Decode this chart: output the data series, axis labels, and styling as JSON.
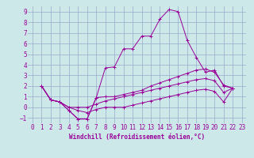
{
  "xlabel": "Windchill (Refroidissement éolien,°C)",
  "background_color": "#cce8e8",
  "grid_color": "#99aacc",
  "line_color": "#990099",
  "xlim": [
    -0.5,
    23.5
  ],
  "ylim": [
    -1.5,
    9.5
  ],
  "xticks": [
    0,
    1,
    2,
    3,
    4,
    5,
    6,
    7,
    8,
    9,
    10,
    11,
    12,
    13,
    14,
    15,
    16,
    17,
    18,
    19,
    20,
    21,
    22,
    23
  ],
  "yticks": [
    -1,
    0,
    1,
    2,
    3,
    4,
    5,
    6,
    7,
    8,
    9
  ],
  "series": [
    {
      "x": [
        1,
        2,
        3,
        4,
        5,
        6,
        7,
        8,
        9,
        10,
        11,
        12,
        13,
        14,
        15,
        16,
        17,
        18,
        19,
        20,
        21,
        22
      ],
      "y": [
        2.0,
        0.7,
        0.5,
        -0.3,
        -1.1,
        -1.1,
        0.9,
        3.7,
        3.8,
        5.5,
        5.5,
        6.7,
        6.7,
        8.3,
        9.2,
        9.0,
        6.3,
        4.7,
        3.3,
        3.5,
        2.0,
        1.8
      ]
    },
    {
      "x": [
        1,
        2,
        3,
        4,
        5,
        6,
        7,
        8,
        9,
        10,
        11,
        12,
        13,
        14,
        15,
        16,
        17,
        18,
        19,
        20,
        21,
        22
      ],
      "y": [
        2.0,
        0.7,
        0.5,
        -0.3,
        -1.1,
        -1.1,
        0.9,
        1.0,
        1.0,
        1.2,
        1.4,
        1.6,
        2.0,
        2.3,
        2.6,
        2.9,
        3.2,
        3.5,
        3.6,
        3.3,
        2.1,
        1.8
      ]
    },
    {
      "x": [
        1,
        2,
        3,
        4,
        5,
        6,
        7,
        8,
        9,
        10,
        11,
        12,
        13,
        14,
        15,
        16,
        17,
        18,
        19,
        20,
        21,
        22
      ],
      "y": [
        2.0,
        0.7,
        0.5,
        0.0,
        0.0,
        0.0,
        0.3,
        0.6,
        0.8,
        1.0,
        1.2,
        1.4,
        1.6,
        1.8,
        2.0,
        2.2,
        2.4,
        2.6,
        2.7,
        2.5,
        1.4,
        1.8
      ]
    },
    {
      "x": [
        1,
        2,
        3,
        4,
        5,
        6,
        7,
        8,
        9,
        10,
        11,
        12,
        13,
        14,
        15,
        16,
        17,
        18,
        19,
        20,
        21,
        22
      ],
      "y": [
        2.0,
        0.7,
        0.5,
        0.0,
        -0.3,
        -0.5,
        -0.2,
        0.0,
        0.0,
        0.0,
        0.2,
        0.4,
        0.6,
        0.8,
        1.0,
        1.2,
        1.4,
        1.6,
        1.7,
        1.5,
        0.5,
        1.8
      ]
    }
  ],
  "tick_fontsize": 5.5,
  "xlabel_fontsize": 5.5
}
